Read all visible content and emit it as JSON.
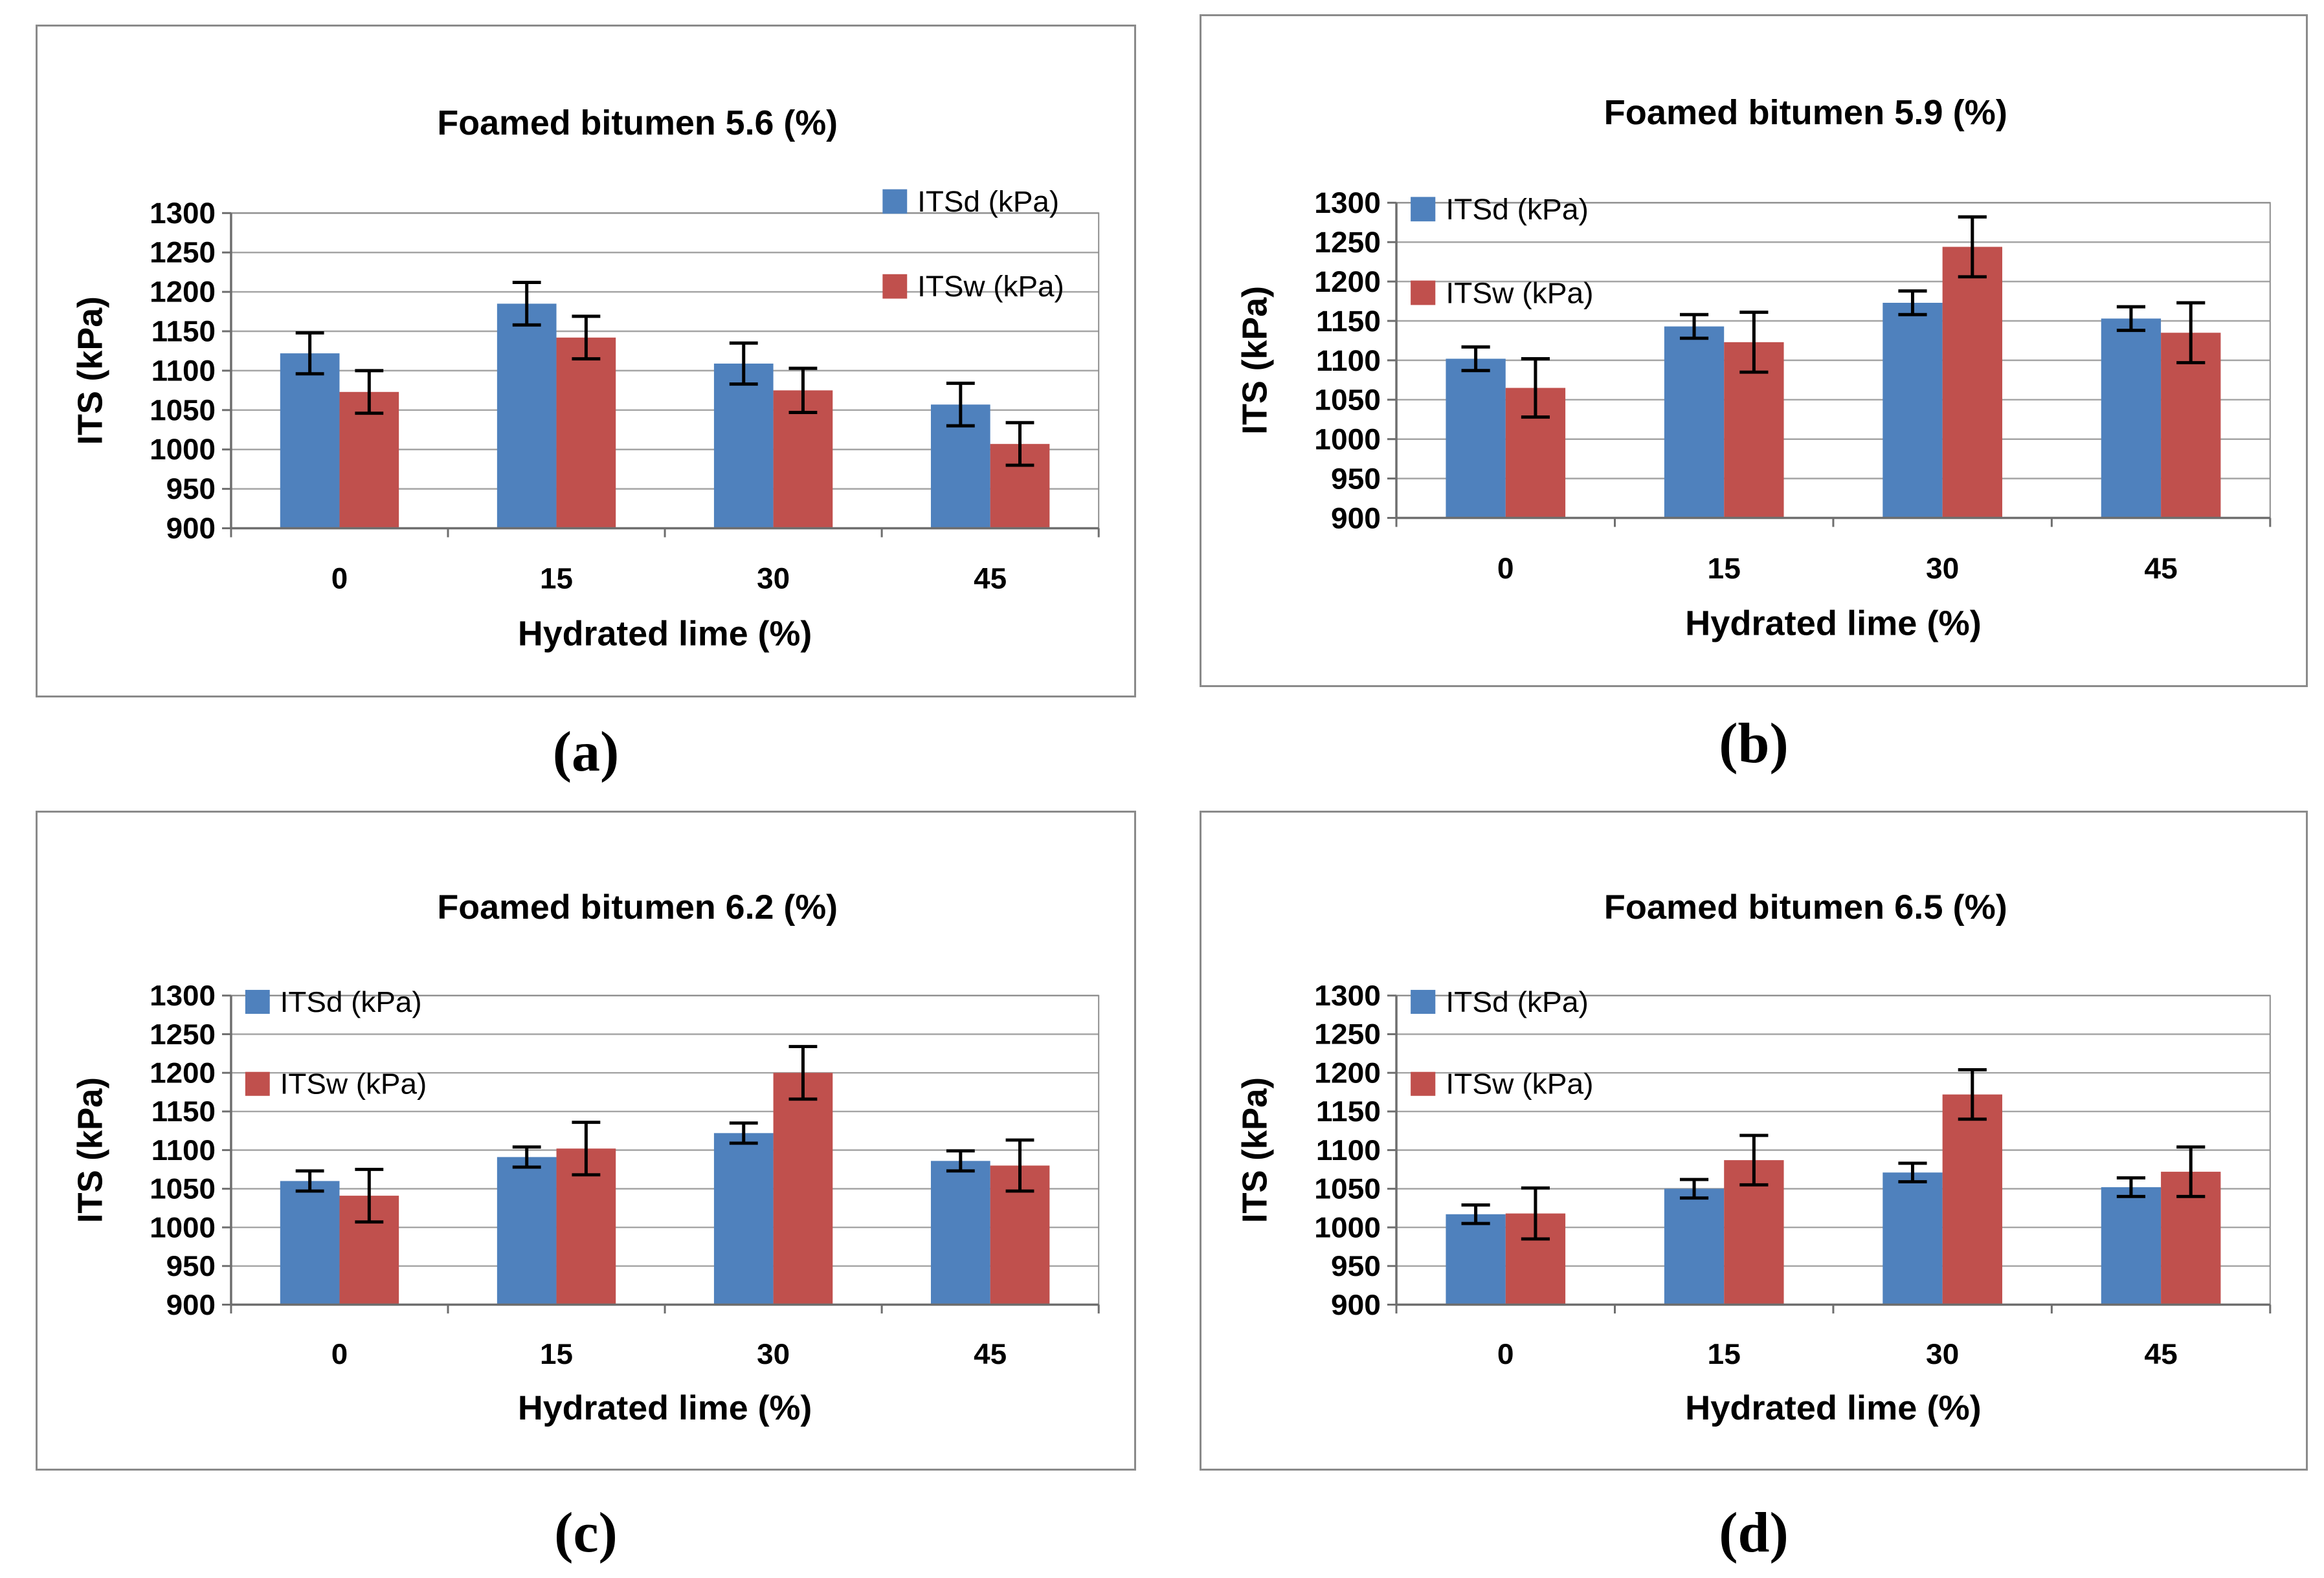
{
  "figure": {
    "background": "#ffffff",
    "colors": {
      "itsd": "#4F81BD",
      "itsw": "#C0504D",
      "gridline": "#A5A5A5",
      "plot_border": "#8E8E8E",
      "axis": "#6E6E6E",
      "error_bar": "#000000",
      "text": "#000000",
      "box_border": "#8a8a8a"
    }
  },
  "chart_data": [
    {
      "type": "bar",
      "panel_label": "(a)",
      "title": "Foamed bitumen 5.6 (%)",
      "xlabel": "Hydrated lime (%)",
      "ylabel": "ITS (kPa)",
      "categories": [
        "0",
        "15",
        "30",
        "45"
      ],
      "ylim": [
        900,
        1300
      ],
      "yticks": [
        900,
        950,
        1000,
        1050,
        1100,
        1150,
        1200,
        1250,
        1300
      ],
      "grid": true,
      "legend_position": "inside-right",
      "series": [
        {
          "name": "ITSd (kPa)",
          "color": "#4F81BD",
          "values": [
            1122,
            1185,
            1109,
            1057
          ],
          "errors": [
            26,
            27,
            26,
            27
          ]
        },
        {
          "name": "ITSw (kPa)",
          "color": "#C0504D",
          "values": [
            1073,
            1142,
            1075,
            1007
          ],
          "errors": [
            27,
            27,
            28,
            27
          ]
        }
      ]
    },
    {
      "type": "bar",
      "panel_label": "(b)",
      "title": "Foamed bitumen 5.9 (%)",
      "xlabel": "Hydrated lime (%)",
      "ylabel": "ITS (kPa)",
      "categories": [
        "0",
        "15",
        "30",
        "45"
      ],
      "ylim": [
        900,
        1300
      ],
      "yticks": [
        900,
        950,
        1000,
        1050,
        1100,
        1150,
        1200,
        1250,
        1300
      ],
      "grid": true,
      "legend_position": "inside-top-left",
      "series": [
        {
          "name": "ITSd (kPa)",
          "color": "#4F81BD",
          "values": [
            1102,
            1143,
            1173,
            1153
          ],
          "errors": [
            15,
            15,
            15,
            15
          ]
        },
        {
          "name": "ITSw (kPa)",
          "color": "#C0504D",
          "values": [
            1065,
            1123,
            1244,
            1135
          ],
          "errors": [
            37,
            38,
            38,
            38
          ]
        }
      ]
    },
    {
      "type": "bar",
      "panel_label": "(c)",
      "title": "Foamed bitumen 6.2 (%)",
      "xlabel": "Hydrated lime (%)",
      "ylabel": "ITS (kPa)",
      "categories": [
        "0",
        "15",
        "30",
        "45"
      ],
      "ylim": [
        900,
        1300
      ],
      "yticks": [
        900,
        950,
        1000,
        1050,
        1100,
        1150,
        1200,
        1250,
        1300
      ],
      "grid": true,
      "legend_position": "inside-top-left",
      "series": [
        {
          "name": "ITSd (kPa)",
          "color": "#4F81BD",
          "values": [
            1060,
            1091,
            1122,
            1086
          ],
          "errors": [
            13,
            13,
            13,
            13
          ]
        },
        {
          "name": "ITSw (kPa)",
          "color": "#C0504D",
          "values": [
            1041,
            1102,
            1200,
            1080
          ],
          "errors": [
            34,
            34,
            34,
            33
          ]
        }
      ]
    },
    {
      "type": "bar",
      "panel_label": "(d)",
      "title": "Foamed bitumen 6.5 (%)",
      "xlabel": "Hydrated lime (%)",
      "ylabel": "ITS (kPa)",
      "categories": [
        "0",
        "15",
        "30",
        "45"
      ],
      "ylim": [
        900,
        1300
      ],
      "yticks": [
        900,
        950,
        1000,
        1050,
        1100,
        1150,
        1200,
        1250,
        1300
      ],
      "grid": true,
      "legend_position": "inside-top-left",
      "series": [
        {
          "name": "ITSd (kPa)",
          "color": "#4F81BD",
          "values": [
            1017,
            1050,
            1071,
            1052
          ],
          "errors": [
            12,
            12,
            12,
            12
          ]
        },
        {
          "name": "ITSw (kPa)",
          "color": "#C0504D",
          "values": [
            1018,
            1087,
            1172,
            1072
          ],
          "errors": [
            33,
            32,
            32,
            32
          ]
        }
      ]
    }
  ]
}
